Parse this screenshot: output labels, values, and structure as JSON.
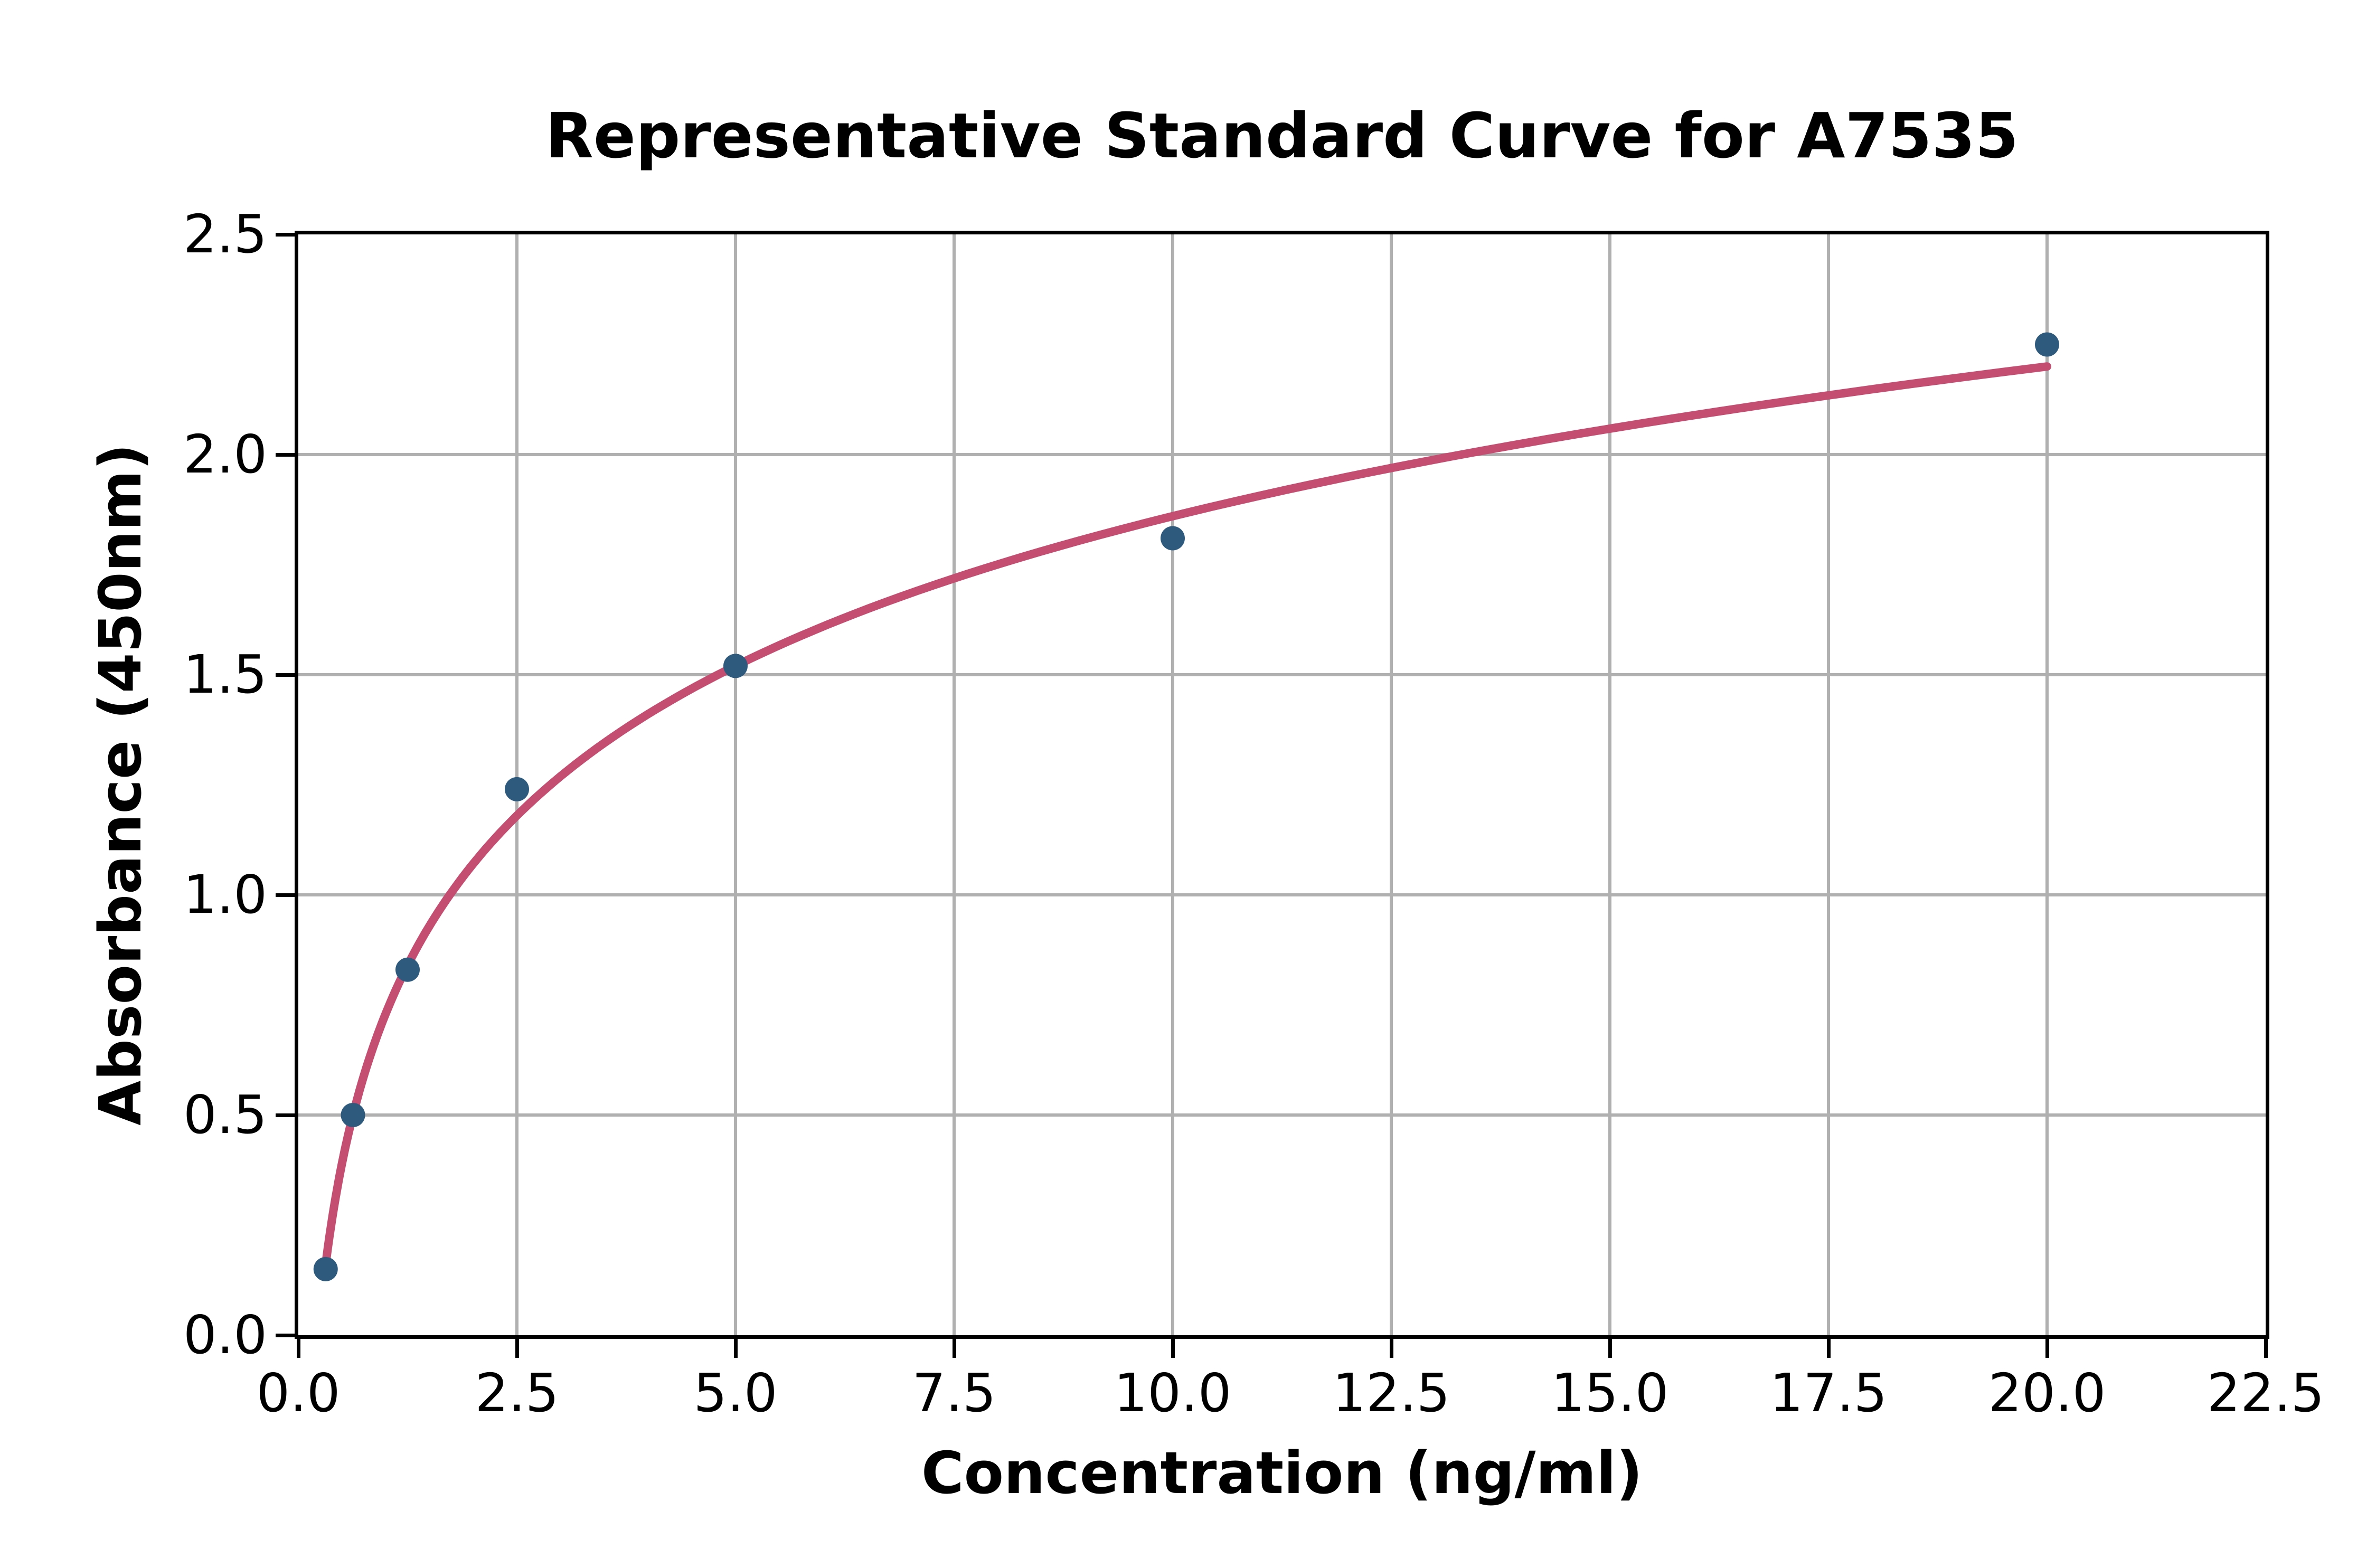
{
  "title": "Representative Standard Curve for A7535",
  "chart_data": {
    "type": "scatter",
    "title": "Representative Standard Curve for A7535",
    "xlabel": "Concentration (ng/ml)",
    "ylabel": "Absorbance (450nm)",
    "xlim": [
      0,
      22.5
    ],
    "ylim": [
      0,
      2.5
    ],
    "grid": true,
    "legend": "none",
    "x_ticks": {
      "values": [
        0,
        2.5,
        5,
        7.5,
        10,
        12.5,
        15,
        17.5,
        20,
        22.5
      ],
      "labels": [
        "0.0",
        "2.5",
        "5.0",
        "7.5",
        "10.0",
        "12.5",
        "15.0",
        "17.5",
        "20.0",
        "22.5"
      ]
    },
    "y_ticks": {
      "values": [
        0,
        0.5,
        1,
        1.5,
        2,
        2.5
      ],
      "labels": [
        "0.0",
        "0.5",
        "1.0",
        "1.5",
        "2.0",
        "2.5"
      ]
    },
    "points": [
      {
        "x": 0.3125,
        "y": 0.15
      },
      {
        "x": 0.625,
        "y": 0.5
      },
      {
        "x": 1.25,
        "y": 0.83
      },
      {
        "x": 2.5,
        "y": 1.24
      },
      {
        "x": 5,
        "y": 1.52
      },
      {
        "x": 10,
        "y": 1.81
      },
      {
        "x": 20,
        "y": 2.25
      }
    ],
    "fit_curve": {
      "type": "logarithmic",
      "formula": "y = 0.4905*ln(x) + 0.7306",
      "slope": 0.4905,
      "intercept": 0.7306,
      "x_start": 0.3125,
      "x_end": 20
    },
    "colors": {
      "marker": "#2E5A7D",
      "curve": "#C44D72",
      "grid": "#B0B0B0",
      "spine": "#000000",
      "text": "#000000",
      "background": "#FFFFFF"
    }
  }
}
